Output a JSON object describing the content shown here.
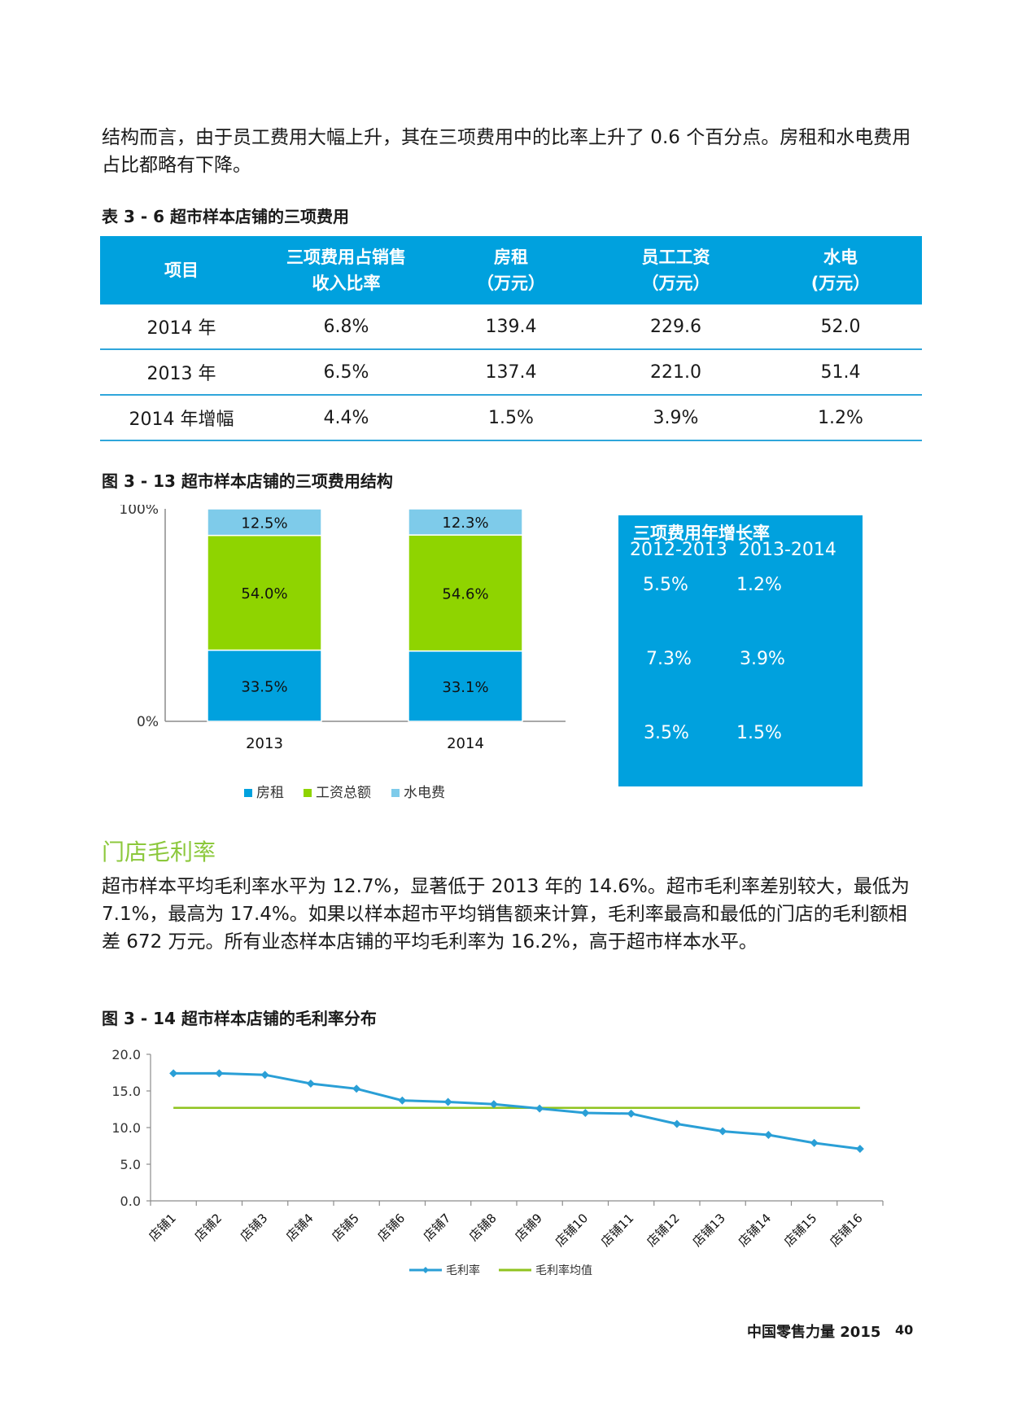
{
  "intro_paragraph": "结构而言，由于员工费用大幅上升，其在三项费用中的比率上升了 0.6 个百分点。房租和水电费用占比都略有下降。",
  "table": {
    "caption": "表 3 - 6 超市样本店铺的三项费用",
    "headers": [
      [
        "项目"
      ],
      [
        "三项费用占销售",
        "收入比率"
      ],
      [
        "房租",
        "（万元）"
      ],
      [
        "员工工资",
        "（万元）"
      ],
      [
        "水电",
        "(万元）"
      ]
    ],
    "rows": [
      [
        "2014 年",
        "6.8%",
        "139.4",
        "229.6",
        "52.0"
      ],
      [
        "2013 年",
        "6.5%",
        "137.4",
        "221.0",
        "51.4"
      ],
      [
        "2014 年增幅",
        "4.4%",
        "1.5%",
        "3.9%",
        "1.2%"
      ]
    ]
  },
  "figure_13": {
    "caption": "图 3 - 13 超市样本店铺的三项费用结构",
    "y_tick_labels": [
      "100%",
      "0%"
    ],
    "legend": [
      "房租",
      "工资总额",
      "水电费"
    ],
    "colors": {
      "rent": "#00a1de",
      "wages": "#8fd400",
      "utilities": "#7ecbea"
    }
  },
  "growth_box": {
    "title": "三项费用年增长率",
    "col_headers": [
      "2012-2013",
      "2013-2014"
    ],
    "rows": [
      [
        "5.5%",
        "1.2%"
      ],
      [
        "7.3%",
        "3.9%"
      ],
      [
        "3.5%",
        "1.5%"
      ]
    ]
  },
  "section_heading": "门店毛利率",
  "body_paragraph": "超市样本平均毛利率水平为 12.7%，显著低于 2013 年的 14.6%。超市毛利率差别较大，最低为 7.1%，最高为 17.4%。如果以样本超市平均销售额来计算，毛利率最高和最低的门店的毛利额相差 672 万元。所有业态样本店铺的平均毛利率为 16.2%，高于超市样本水平。",
  "figure_14": {
    "caption": "图 3 - 14 超市样本店铺的毛利率分布"
  },
  "chart_data": [
    {
      "type": "bar",
      "stacked": true,
      "categories": [
        "2013",
        "2014"
      ],
      "series": [
        {
          "name": "房租",
          "values": [
            33.5,
            33.1
          ],
          "labels": [
            "33.5%",
            "33.1%"
          ]
        },
        {
          "name": "工资总额",
          "values": [
            54.0,
            54.6
          ],
          "labels": [
            "54.0%",
            "54.6%"
          ]
        },
        {
          "name": "水电费",
          "values": [
            12.5,
            12.3
          ],
          "labels": [
            "12.5%",
            "12.3%"
          ]
        }
      ],
      "ylim": [
        0,
        100
      ],
      "y_ticks": [
        "0%",
        "100%"
      ],
      "legend_position": "bottom"
    },
    {
      "type": "line",
      "categories": [
        "店铺1",
        "店铺2",
        "店铺3",
        "店铺4",
        "店铺5",
        "店铺6",
        "店铺7",
        "店铺8",
        "店铺9",
        "店铺10",
        "店铺11",
        "店铺12",
        "店铺13",
        "店铺14",
        "店铺15",
        "店铺16"
      ],
      "series": [
        {
          "name": "毛利率",
          "values": [
            17.4,
            17.4,
            17.2,
            16.0,
            15.3,
            13.7,
            13.5,
            13.2,
            12.6,
            12.0,
            11.9,
            10.5,
            9.5,
            9.0,
            7.9,
            7.1
          ],
          "color": "#2a9fd6",
          "marker": "diamond"
        },
        {
          "name": "毛利率均值",
          "values": [
            12.7,
            12.7,
            12.7,
            12.7,
            12.7,
            12.7,
            12.7,
            12.7,
            12.7,
            12.7,
            12.7,
            12.7,
            12.7,
            12.7,
            12.7,
            12.7
          ],
          "color": "#8fc31f"
        }
      ],
      "ylim": [
        0,
        20
      ],
      "y_ticks": [
        "0.0",
        "5.0",
        "10.0",
        "15.0",
        "20.0"
      ],
      "legend_position": "bottom"
    }
  ],
  "footer": {
    "title": "中国零售力量 2015",
    "page": "40"
  }
}
